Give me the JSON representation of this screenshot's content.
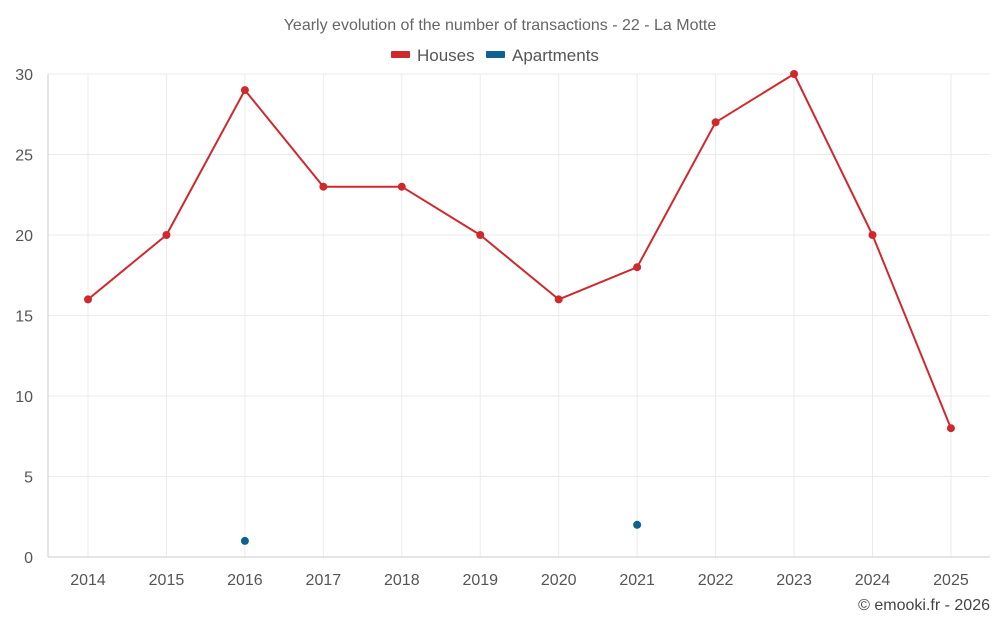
{
  "chart_data": {
    "type": "line",
    "title": "Yearly evolution of the number of transactions - 22 - La Motte",
    "categories": [
      "2014",
      "2015",
      "2016",
      "2017",
      "2018",
      "2019",
      "2020",
      "2021",
      "2022",
      "2023",
      "2024",
      "2025"
    ],
    "ylim": [
      0,
      30
    ],
    "yticks": [
      0,
      5,
      10,
      15,
      20,
      25,
      30
    ],
    "xlabel": "",
    "ylabel": "",
    "grid": true,
    "legend_position": "top-center",
    "series": [
      {
        "name": "Houses",
        "color": "#d0292d",
        "values": [
          16,
          20,
          29,
          23,
          23,
          20,
          16,
          18,
          27,
          30,
          20,
          8
        ]
      },
      {
        "name": "Apartments",
        "color": "#0f6290",
        "values": [
          null,
          null,
          1,
          null,
          null,
          null,
          null,
          2,
          null,
          null,
          null,
          null
        ]
      }
    ]
  },
  "credit": "© emooki.fr - 2026"
}
